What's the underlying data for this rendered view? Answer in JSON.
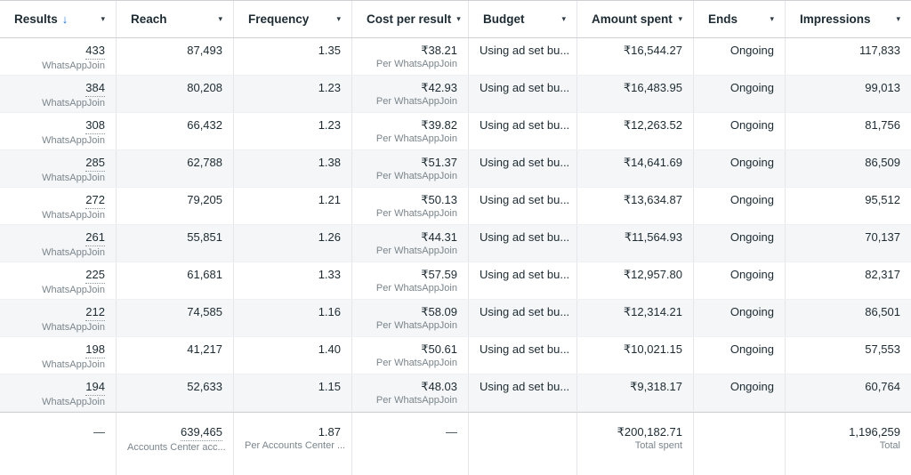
{
  "colors": {
    "accent_blue": "#1877f2",
    "row_alt_background": "#f5f6f7",
    "sublabel_gray": "#7a858c"
  },
  "table": {
    "columns": [
      {
        "key": "results",
        "label": "Results",
        "sorted": "desc"
      },
      {
        "key": "reach",
        "label": "Reach"
      },
      {
        "key": "frequency",
        "label": "Frequency"
      },
      {
        "key": "cost",
        "label": "Cost per result"
      },
      {
        "key": "budget",
        "label": "Budget"
      },
      {
        "key": "amount",
        "label": "Amount spent"
      },
      {
        "key": "ends",
        "label": "Ends"
      },
      {
        "key": "impressions",
        "label": "Impressions"
      }
    ],
    "sort_arrow": "↓",
    "caret": "▾",
    "rows": [
      {
        "results": "433",
        "results_sub": "WhatsAppJoin",
        "reach": "87,493",
        "frequency": "1.35",
        "cost": "₹38.21",
        "cost_sub": "Per WhatsAppJoin",
        "budget": "Using ad set bu...",
        "amount": "₹16,544.27",
        "ends": "Ongoing",
        "impressions": "117,833"
      },
      {
        "results": "384",
        "results_sub": "WhatsAppJoin",
        "reach": "80,208",
        "frequency": "1.23",
        "cost": "₹42.93",
        "cost_sub": "Per WhatsAppJoin",
        "budget": "Using ad set bu...",
        "amount": "₹16,483.95",
        "ends": "Ongoing",
        "impressions": "99,013"
      },
      {
        "results": "308",
        "results_sub": "WhatsAppJoin",
        "reach": "66,432",
        "frequency": "1.23",
        "cost": "₹39.82",
        "cost_sub": "Per WhatsAppJoin",
        "budget": "Using ad set bu...",
        "amount": "₹12,263.52",
        "ends": "Ongoing",
        "impressions": "81,756"
      },
      {
        "results": "285",
        "results_sub": "WhatsAppJoin",
        "reach": "62,788",
        "frequency": "1.38",
        "cost": "₹51.37",
        "cost_sub": "Per WhatsAppJoin",
        "budget": "Using ad set bu...",
        "amount": "₹14,641.69",
        "ends": "Ongoing",
        "impressions": "86,509"
      },
      {
        "results": "272",
        "results_sub": "WhatsAppJoin",
        "reach": "79,205",
        "frequency": "1.21",
        "cost": "₹50.13",
        "cost_sub": "Per WhatsAppJoin",
        "budget": "Using ad set bu...",
        "amount": "₹13,634.87",
        "ends": "Ongoing",
        "impressions": "95,512"
      },
      {
        "results": "261",
        "results_sub": "WhatsAppJoin",
        "reach": "55,851",
        "frequency": "1.26",
        "cost": "₹44.31",
        "cost_sub": "Per WhatsAppJoin",
        "budget": "Using ad set bu...",
        "amount": "₹11,564.93",
        "ends": "Ongoing",
        "impressions": "70,137"
      },
      {
        "results": "225",
        "results_sub": "WhatsAppJoin",
        "reach": "61,681",
        "frequency": "1.33",
        "cost": "₹57.59",
        "cost_sub": "Per WhatsAppJoin",
        "budget": "Using ad set bu...",
        "amount": "₹12,957.80",
        "ends": "Ongoing",
        "impressions": "82,317"
      },
      {
        "results": "212",
        "results_sub": "WhatsAppJoin",
        "reach": "74,585",
        "frequency": "1.16",
        "cost": "₹58.09",
        "cost_sub": "Per WhatsAppJoin",
        "budget": "Using ad set bu...",
        "amount": "₹12,314.21",
        "ends": "Ongoing",
        "impressions": "86,501"
      },
      {
        "results": "198",
        "results_sub": "WhatsAppJoin",
        "reach": "41,217",
        "frequency": "1.40",
        "cost": "₹50.61",
        "cost_sub": "Per WhatsAppJoin",
        "budget": "Using ad set bu...",
        "amount": "₹10,021.15",
        "ends": "Ongoing",
        "impressions": "57,553"
      },
      {
        "results": "194",
        "results_sub": "WhatsAppJoin",
        "reach": "52,633",
        "frequency": "1.15",
        "cost": "₹48.03",
        "cost_sub": "Per WhatsAppJoin",
        "budget": "Using ad set bu...",
        "amount": "₹9,318.17",
        "ends": "Ongoing",
        "impressions": "60,764"
      }
    ],
    "footer": {
      "results": "—",
      "reach": "639,465",
      "reach_sub": "Accounts Center acc...",
      "frequency": "1.87",
      "frequency_sub": "Per Accounts Center ...",
      "cost": "—",
      "amount": "₹200,182.71",
      "amount_sub": "Total spent",
      "impressions": "1,196,259",
      "impressions_sub": "Total"
    }
  }
}
